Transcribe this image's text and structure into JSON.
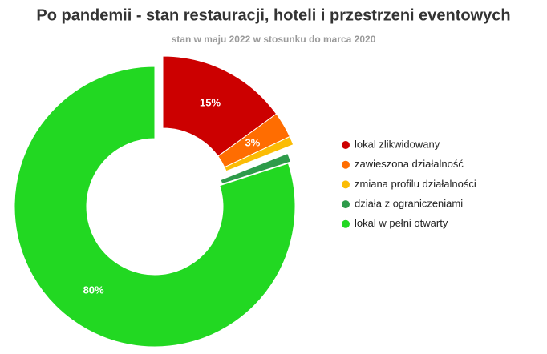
{
  "chart_data": {
    "type": "donut",
    "title": "Po pandemii - stan restauracji, hoteli i przestrzeni eventowych",
    "subtitle": "stan w maju 2022 w stosunku do marca 2020",
    "categories": [
      "lokal zlikwidowany",
      "zawieszona działalność",
      "zmiana profilu działalności",
      "działa z ograniczeniami",
      "lokal w pełni otwarty"
    ],
    "values": [
      15,
      3,
      1,
      1,
      80
    ],
    "value_labels": [
      "15%",
      "3%",
      null,
      null,
      "80%"
    ],
    "colors": [
      "#cc0000",
      "#ff6d01",
      "#fbbc04",
      "#2e9b4a",
      "#22d822"
    ],
    "legend": "right"
  }
}
